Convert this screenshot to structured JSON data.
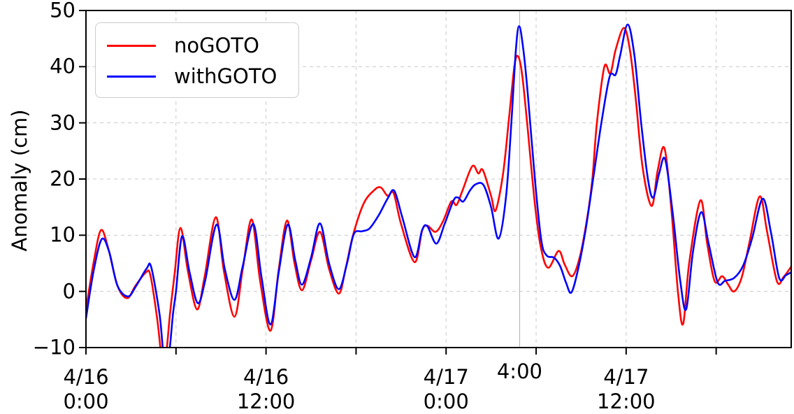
{
  "chart_data": {
    "type": "line",
    "title": "",
    "xlabel": "",
    "ylabel": "Anomaly (cm)",
    "ylim": [
      -10,
      50
    ],
    "xlim_hours": [
      0,
      47
    ],
    "x_origin": "4/16 0:00",
    "grid": "dashed both axes every 10 cm / every 6 h",
    "yticks": [
      {
        "value": -10,
        "label": "−10"
      },
      {
        "value": 0,
        "label": "0"
      },
      {
        "value": 10,
        "label": "10"
      },
      {
        "value": 20,
        "label": "20"
      },
      {
        "value": 30,
        "label": "30"
      },
      {
        "value": 40,
        "label": "40"
      },
      {
        "value": 50,
        "label": "50"
      }
    ],
    "xticks": [
      {
        "hour": 0,
        "label": "4/16\n0:00"
      },
      {
        "hour": 6,
        "label": ""
      },
      {
        "hour": 12,
        "label": "4/16\n12:00"
      },
      {
        "hour": 18,
        "label": ""
      },
      {
        "hour": 24,
        "label": "4/17\n0:00"
      },
      {
        "hour": 30,
        "label": ""
      },
      {
        "hour": 36,
        "label": "4/17\n12:00"
      },
      {
        "hour": 42,
        "label": ""
      }
    ],
    "annotation": {
      "hour": 28.9,
      "label": "4:00",
      "line_color": "#bbbbbb",
      "line_style": "solid"
    },
    "legend": {
      "position": "upper-left",
      "entries": [
        {
          "label": "noGOTO",
          "color": "#ff0000"
        },
        {
          "label": "withGOTO",
          "color": "#0000ff"
        }
      ]
    },
    "series": [
      {
        "name": "noGOTO",
        "color": "#ff0000",
        "points_hour_value": [
          [
            0,
            -3.3
          ],
          [
            0.5,
            5
          ],
          [
            1.0,
            10.9
          ],
          [
            1.5,
            7.5
          ],
          [
            2.1,
            1
          ],
          [
            2.75,
            -1.2
          ],
          [
            3.3,
            1
          ],
          [
            4.0,
            3.4
          ],
          [
            4.3,
            2.8
          ],
          [
            4.75,
            -5
          ],
          [
            5.0,
            -11
          ],
          [
            5.15,
            -13
          ],
          [
            5.35,
            -11
          ],
          [
            5.6,
            -4
          ],
          [
            5.9,
            3
          ],
          [
            6.3,
            11.3
          ],
          [
            6.8,
            3.5
          ],
          [
            7.4,
            -3.2
          ],
          [
            7.9,
            2.5
          ],
          [
            8.65,
            13.2
          ],
          [
            9.2,
            3.5
          ],
          [
            9.9,
            -4.5
          ],
          [
            10.45,
            4
          ],
          [
            11.05,
            12.8
          ],
          [
            11.6,
            2
          ],
          [
            12.3,
            -7.0
          ],
          [
            12.85,
            4
          ],
          [
            13.4,
            12.6
          ],
          [
            13.9,
            5
          ],
          [
            14.4,
            0.2
          ],
          [
            15.0,
            5.5
          ],
          [
            15.6,
            10.6
          ],
          [
            16.2,
            4
          ],
          [
            16.85,
            -0.4
          ],
          [
            17.3,
            4
          ],
          [
            17.8,
            10
          ],
          [
            18.5,
            15.6
          ],
          [
            19.2,
            18.0
          ],
          [
            19.65,
            18.5
          ],
          [
            20.1,
            17.0
          ],
          [
            20.5,
            17.5
          ],
          [
            21.0,
            12
          ],
          [
            21.9,
            5.2
          ],
          [
            22.4,
            10.8
          ],
          [
            22.75,
            11.7
          ],
          [
            23.3,
            10.6
          ],
          [
            23.8,
            12.5
          ],
          [
            24.35,
            16.0
          ],
          [
            24.7,
            15.4
          ],
          [
            25.1,
            18
          ],
          [
            25.75,
            22.3
          ],
          [
            26.15,
            21.0
          ],
          [
            26.45,
            21.6
          ],
          [
            27.0,
            17
          ],
          [
            27.3,
            14.4
          ],
          [
            27.8,
            21
          ],
          [
            28.2,
            31
          ],
          [
            28.55,
            40
          ],
          [
            28.78,
            41.9
          ],
          [
            29.05,
            39
          ],
          [
            29.4,
            30
          ],
          [
            29.9,
            16
          ],
          [
            30.3,
            8
          ],
          [
            30.8,
            4.2
          ],
          [
            31.5,
            7.2
          ],
          [
            31.9,
            4.8
          ],
          [
            32.4,
            2.7
          ],
          [
            32.9,
            6
          ],
          [
            33.4,
            13
          ],
          [
            33.75,
            20
          ],
          [
            34.05,
            30
          ],
          [
            34.55,
            40.0
          ],
          [
            34.95,
            38.8
          ],
          [
            35.3,
            43
          ],
          [
            35.85,
            46.9
          ],
          [
            36.25,
            43
          ],
          [
            36.65,
            34
          ],
          [
            37.1,
            22
          ],
          [
            37.7,
            15.2
          ],
          [
            38.1,
            21.5
          ],
          [
            38.55,
            25.5
          ],
          [
            39.0,
            15
          ],
          [
            39.45,
            0
          ],
          [
            39.8,
            -5.8
          ],
          [
            40.2,
            5
          ],
          [
            40.95,
            16.2
          ],
          [
            41.4,
            8.5
          ],
          [
            41.9,
            1.8
          ],
          [
            42.4,
            2.7
          ],
          [
            42.8,
            1.2
          ],
          [
            43.2,
            0.0
          ],
          [
            43.7,
            2.5
          ],
          [
            44.2,
            8.5
          ],
          [
            44.9,
            16.9
          ],
          [
            45.4,
            10.5
          ],
          [
            46.05,
            1.8
          ],
          [
            46.5,
            2.6
          ],
          [
            47.0,
            4.4
          ]
        ]
      },
      {
        "name": "withGOTO",
        "color": "#0000ff",
        "points_hour_value": [
          [
            0,
            -4.8
          ],
          [
            0.5,
            3.5
          ],
          [
            1.05,
            9.3
          ],
          [
            1.55,
            7
          ],
          [
            2.1,
            1
          ],
          [
            2.8,
            -0.9
          ],
          [
            3.35,
            1
          ],
          [
            4.05,
            4.1
          ],
          [
            4.35,
            4.3
          ],
          [
            4.9,
            -4
          ],
          [
            5.15,
            -11
          ],
          [
            5.35,
            -13
          ],
          [
            5.55,
            -11
          ],
          [
            5.8,
            -4
          ],
          [
            6.0,
            0
          ],
          [
            6.4,
            9.8
          ],
          [
            6.9,
            3.5
          ],
          [
            7.45,
            -2.1
          ],
          [
            7.95,
            2
          ],
          [
            8.7,
            11.9
          ],
          [
            9.25,
            4
          ],
          [
            9.9,
            -1.5
          ],
          [
            10.45,
            4.5
          ],
          [
            11.15,
            12.0
          ],
          [
            11.7,
            2.5
          ],
          [
            12.3,
            -5.9
          ],
          [
            12.85,
            3.5
          ],
          [
            13.45,
            11.9
          ],
          [
            13.95,
            5.5
          ],
          [
            14.4,
            1.2
          ],
          [
            15.0,
            6
          ],
          [
            15.6,
            12.1
          ],
          [
            16.2,
            5
          ],
          [
            16.85,
            0.4
          ],
          [
            17.4,
            5
          ],
          [
            17.85,
            10.2
          ],
          [
            18.4,
            10.7
          ],
          [
            18.9,
            11.2
          ],
          [
            19.5,
            13.5
          ],
          [
            20.1,
            16.5
          ],
          [
            20.55,
            17.9
          ],
          [
            21.1,
            13
          ],
          [
            21.9,
            6.1
          ],
          [
            22.4,
            10.9
          ],
          [
            22.75,
            11.6
          ],
          [
            23.35,
            8.5
          ],
          [
            23.9,
            12
          ],
          [
            24.5,
            16.2
          ],
          [
            24.8,
            16.7
          ],
          [
            25.15,
            16.0
          ],
          [
            25.6,
            18
          ],
          [
            26.0,
            19.1
          ],
          [
            26.5,
            18.9
          ],
          [
            27.0,
            15
          ],
          [
            27.5,
            9.4
          ],
          [
            28.0,
            17
          ],
          [
            28.35,
            30
          ],
          [
            28.65,
            43
          ],
          [
            28.87,
            47.2
          ],
          [
            29.15,
            43
          ],
          [
            29.45,
            35
          ],
          [
            29.95,
            19
          ],
          [
            30.35,
            9
          ],
          [
            30.7,
            6.4
          ],
          [
            31.2,
            6.0
          ],
          [
            31.6,
            4.5
          ],
          [
            32.0,
            1.5
          ],
          [
            32.35,
            -0.2
          ],
          [
            32.8,
            4
          ],
          [
            33.3,
            11
          ],
          [
            33.8,
            20
          ],
          [
            34.35,
            30
          ],
          [
            34.9,
            38.2
          ],
          [
            35.3,
            38.6
          ],
          [
            35.6,
            42
          ],
          [
            36.1,
            47.5
          ],
          [
            36.55,
            42
          ],
          [
            37.0,
            30
          ],
          [
            37.45,
            20
          ],
          [
            37.8,
            16.7
          ],
          [
            38.2,
            21
          ],
          [
            38.6,
            23.5
          ],
          [
            39.1,
            14
          ],
          [
            39.6,
            2
          ],
          [
            40.0,
            -3.2
          ],
          [
            40.45,
            7
          ],
          [
            41.0,
            14.1
          ],
          [
            41.5,
            8.5
          ],
          [
            42.1,
            1.6
          ],
          [
            42.6,
            1.9
          ],
          [
            43.2,
            2.4
          ],
          [
            43.8,
            4.6
          ],
          [
            44.4,
            9.5
          ],
          [
            45.1,
            16.5
          ],
          [
            45.65,
            10.5
          ],
          [
            46.2,
            2.4
          ],
          [
            46.65,
            2.9
          ],
          [
            47.0,
            3.4
          ]
        ]
      }
    ]
  }
}
